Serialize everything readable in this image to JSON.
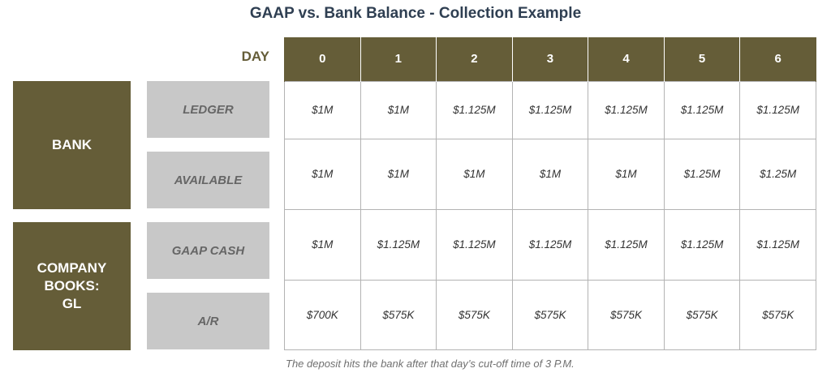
{
  "title": "GAAP vs. Bank Balance - Collection Example",
  "day_label": "DAY",
  "days": [
    "0",
    "1",
    "2",
    "3",
    "4",
    "5",
    "6"
  ],
  "groups": [
    {
      "label": "BANK"
    },
    {
      "label": "COMPANY\nBOOKS:\nGL"
    }
  ],
  "rows": [
    {
      "label": "LEDGER",
      "values": [
        "$1M",
        "$1M",
        "$1.125M",
        "$1.125M",
        "$1.125M",
        "$1.125M",
        "$1.125M"
      ]
    },
    {
      "label": "AVAILABLE",
      "values": [
        "$1M",
        "$1M",
        "$1M",
        "$1M",
        "$1M",
        "$1.25M",
        "$1.25M"
      ]
    },
    {
      "label": "GAAP CASH",
      "values": [
        "$1M",
        "$1.125M",
        "$1.125M",
        "$1.125M",
        "$1.125M",
        "$1.125M",
        "$1.125M"
      ]
    },
    {
      "label": "A/R",
      "values": [
        "$700K",
        "$575K",
        "$575K",
        "$575K",
        "$575K",
        "$575K",
        "$575K"
      ]
    }
  ],
  "footnote": "The deposit hits the bank after that day’s cut-off time of 3 P.M.",
  "colors": {
    "olive": "#655d38",
    "gray_label": "#c8c8c8",
    "title": "#2f3f52"
  }
}
